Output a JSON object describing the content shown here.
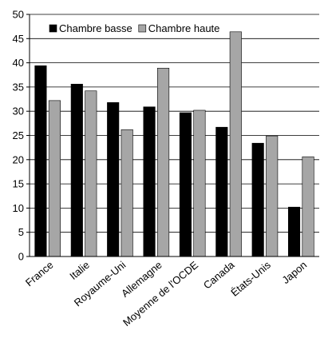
{
  "chart_data": {
    "type": "bar",
    "categories": [
      "France",
      "Italie",
      "Royaume-Uni",
      "Allemagne",
      "Moyenne de l'OCDE",
      "Canada",
      "États-Unis",
      "Japon"
    ],
    "series": [
      {
        "name": "Chambre basse",
        "color": "#000000",
        "values": [
          39.4,
          35.6,
          31.8,
          30.9,
          29.7,
          26.7,
          23.4,
          10.2
        ]
      },
      {
        "name": "Chambre haute",
        "color": "#a6a6a6",
        "values": [
          32.2,
          34.2,
          26.2,
          38.9,
          30.2,
          46.4,
          24.9,
          20.6
        ]
      }
    ],
    "ylim": [
      0,
      50
    ],
    "yticks": [
      0,
      5,
      10,
      15,
      20,
      25,
      30,
      35,
      40,
      45,
      50
    ],
    "grid": true,
    "legend": "top-left"
  }
}
